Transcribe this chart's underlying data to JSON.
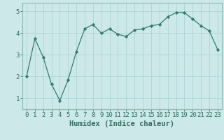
{
  "x": [
    0,
    1,
    2,
    3,
    4,
    5,
    6,
    7,
    8,
    9,
    10,
    11,
    12,
    13,
    14,
    15,
    16,
    17,
    18,
    19,
    20,
    21,
    22,
    23
  ],
  "y": [
    2.0,
    3.75,
    2.9,
    1.65,
    0.9,
    1.85,
    3.15,
    4.2,
    4.4,
    4.0,
    4.2,
    3.95,
    3.85,
    4.15,
    4.2,
    4.35,
    4.4,
    4.75,
    4.95,
    4.95,
    4.65,
    4.35,
    4.1,
    3.25
  ],
  "line_color": "#2e7d6e",
  "marker": "D",
  "marker_size": 2.2,
  "bg_color": "#cce8e8",
  "grid_color": "#b0d8d8",
  "xlabel": "Humidex (Indice chaleur)",
  "xlim": [
    -0.5,
    23.5
  ],
  "ylim": [
    0.5,
    5.4
  ],
  "yticks": [
    1,
    2,
    3,
    4,
    5
  ],
  "xticks": [
    0,
    1,
    2,
    3,
    4,
    5,
    6,
    7,
    8,
    9,
    10,
    11,
    12,
    13,
    14,
    15,
    16,
    17,
    18,
    19,
    20,
    21,
    22,
    23
  ],
  "xlabel_fontsize": 7.5,
  "tick_fontsize": 6.5,
  "tick_color": "#2e6e60",
  "axis_color": "#8ab8b8",
  "spine_color": "#8ab8b8"
}
